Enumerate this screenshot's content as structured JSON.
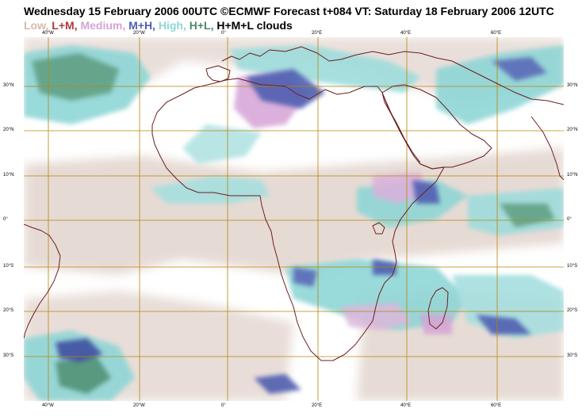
{
  "title": "Wednesday 15 February 2006 00UTC ©ECMWF Forecast t+084 VT: Saturday 18 February 2006 12UTC",
  "legend": [
    {
      "text": "Low, ",
      "color": "#d9b8a8"
    },
    {
      "text": "L+M, ",
      "color": "#b03a3a"
    },
    {
      "text": "Medium, ",
      "color": "#d6a3d6"
    },
    {
      "text": "M+H, ",
      "color": "#4f5fb0"
    },
    {
      "text": "High, ",
      "color": "#8fd6d6"
    },
    {
      "text": "H+L, ",
      "color": "#4a8a6a"
    },
    {
      "text": "H+M+L clouds",
      "color": "#000000"
    }
  ],
  "lon_labels": [
    "40°W",
    "20°W",
    "0°",
    "20°E",
    "40°E",
    "60°E"
  ],
  "lat_labels_left": [
    "30°N",
    "20°N",
    "10°N",
    "0°",
    "10°S",
    "20°S",
    "30°S"
  ],
  "lat_labels_right": [
    "30°N",
    "20°N",
    "10°N",
    "0°",
    "10°S",
    "20°S",
    "30°S"
  ],
  "colors": {
    "grid": "#b8860b",
    "coast": "#6b1f1f",
    "low": "#dccdc6",
    "high": "#8fd6d6",
    "high_dark": "#6cc6c6",
    "medium": "#d6a3d6",
    "mh": "#4f5fb0",
    "hl": "#4a8a6a"
  }
}
